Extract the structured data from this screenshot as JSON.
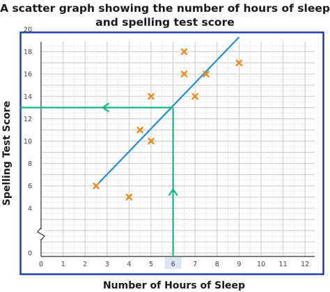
{
  "chart_data": {
    "type": "scatter",
    "title_lines": [
      "A scatter graph showing the number of hours of sleep",
      "and spelling test score"
    ],
    "xlabel": "Number of Hours of Sleep",
    "ylabel": "Spelling Test Score",
    "xlim": [
      0,
      12.5
    ],
    "ylim": [
      0,
      21
    ],
    "x_ticks": [
      0,
      1,
      2,
      3,
      4,
      5,
      6,
      7,
      8,
      9,
      10,
      11,
      12
    ],
    "y_ticks": [
      0,
      4,
      6,
      8,
      10,
      12,
      14,
      16,
      18,
      20
    ],
    "y_axis_break": true,
    "grid": true,
    "points": [
      {
        "x": 2.5,
        "y": 6
      },
      {
        "x": 4,
        "y": 5
      },
      {
        "x": 4.5,
        "y": 11
      },
      {
        "x": 5,
        "y": 14
      },
      {
        "x": 5,
        "y": 10
      },
      {
        "x": 6.5,
        "y": 18
      },
      {
        "x": 6.5,
        "y": 16
      },
      {
        "x": 7,
        "y": 14
      },
      {
        "x": 7.5,
        "y": 16
      },
      {
        "x": 9,
        "y": 17
      }
    ],
    "line_of_best_fit": {
      "x1": 2.5,
      "y1": 6,
      "x2": 9,
      "y2": 19.3
    },
    "reading": {
      "x": 6,
      "y": 13
    },
    "highlight_tick": 6,
    "colors": {
      "point": "#ef8a1e",
      "fit_line": "#1f8ee0",
      "reading_lines": "#14b88a",
      "frame": "#1f3fa8",
      "grid": "#c8c8c8",
      "highlight": "#dde4f4"
    }
  }
}
